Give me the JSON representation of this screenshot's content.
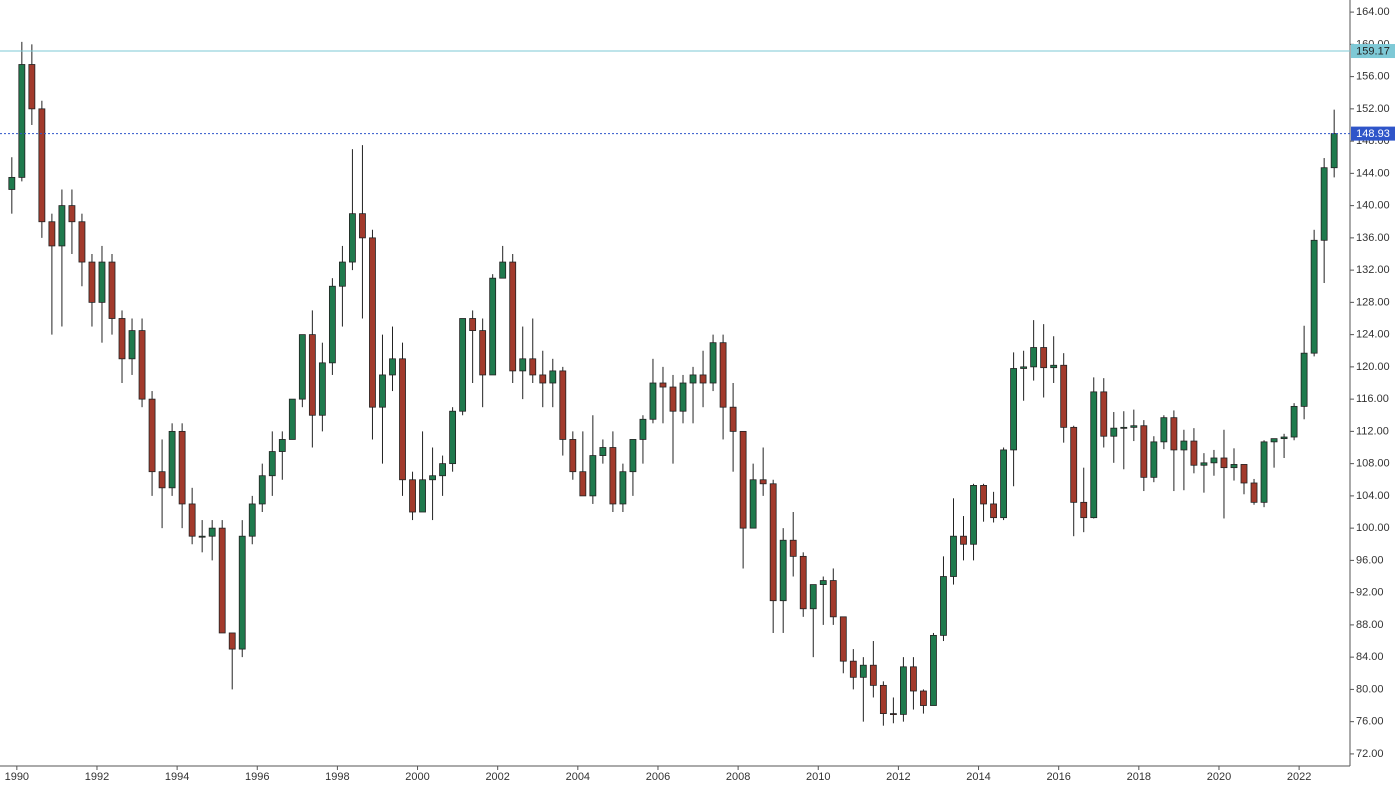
{
  "chart_data": {
    "type": "candlestick",
    "up_color": "#1f7a4d",
    "down_color": "#a23a2c",
    "xlim": [
      1989.58,
      2023.27
    ],
    "xticks": [
      1990,
      1992,
      1994,
      1996,
      1998,
      2000,
      2002,
      2004,
      2006,
      2008,
      2010,
      2012,
      2014,
      2016,
      2018,
      2020,
      2022
    ],
    "ylim": [
      70.5,
      165.5
    ],
    "yticks": [
      {
        "value": 72,
        "label": "72.00"
      },
      {
        "value": 76,
        "label": "76.00"
      },
      {
        "value": 80,
        "label": "80.00"
      },
      {
        "value": 84,
        "label": "84.00"
      },
      {
        "value": 88,
        "label": "88.00"
      },
      {
        "value": 92,
        "label": "92.00"
      },
      {
        "value": 96,
        "label": "96.00"
      },
      {
        "value": 100,
        "label": "100.00"
      },
      {
        "value": 104,
        "label": "104.00"
      },
      {
        "value": 108,
        "label": "108.00"
      },
      {
        "value": 112,
        "label": "112.00"
      },
      {
        "value": 116,
        "label": "116.00"
      },
      {
        "value": 120,
        "label": "120.00"
      },
      {
        "value": 124,
        "label": "124.00"
      },
      {
        "value": 128,
        "label": "128.00"
      },
      {
        "value": 132,
        "label": "132.00"
      },
      {
        "value": 136,
        "label": "136.00"
      },
      {
        "value": 140,
        "label": "140.00"
      },
      {
        "value": 144,
        "label": "144.00"
      },
      {
        "value": 148,
        "label": "148.00"
      },
      {
        "value": 152,
        "label": "152.00"
      },
      {
        "value": 156,
        "label": "156.00"
      },
      {
        "value": 160,
        "label": "160.00"
      },
      {
        "value": 164,
        "label": "164.00"
      }
    ],
    "hlines": [
      {
        "value": 159.17,
        "color": "#7ec9d6",
        "dashed": false,
        "label_text_color": "#222"
      },
      {
        "value": 148.93,
        "color": "#2f55c9",
        "dashed": true,
        "label_text_color": "#fff"
      }
    ],
    "x": [
      1989.875,
      1990.125,
      1990.375,
      1990.625,
      1990.875,
      1991.125,
      1991.375,
      1991.625,
      1991.875,
      1992.125,
      1992.375,
      1992.625,
      1992.875,
      1993.125,
      1993.375,
      1993.625,
      1993.875,
      1994.125,
      1994.375,
      1994.625,
      1994.875,
      1995.125,
      1995.375,
      1995.625,
      1995.875,
      1996.125,
      1996.375,
      1996.625,
      1996.875,
      1997.125,
      1997.375,
      1997.625,
      1997.875,
      1998.125,
      1998.375,
      1998.625,
      1998.875,
      1999.125,
      1999.375,
      1999.625,
      1999.875,
      2000.125,
      2000.375,
      2000.625,
      2000.875,
      2001.125,
      2001.375,
      2001.625,
      2001.875,
      2002.125,
      2002.375,
      2002.625,
      2002.875,
      2003.125,
      2003.375,
      2003.625,
      2003.875,
      2004.125,
      2004.375,
      2004.625,
      2004.875,
      2005.125,
      2005.375,
      2005.625,
      2005.875,
      2006.125,
      2006.375,
      2006.625,
      2006.875,
      2007.125,
      2007.375,
      2007.625,
      2007.875,
      2008.125,
      2008.375,
      2008.625,
      2008.875,
      2009.125,
      2009.375,
      2009.625,
      2009.875,
      2010.125,
      2010.375,
      2010.625,
      2010.875,
      2011.125,
      2011.375,
      2011.625,
      2011.875,
      2012.125,
      2012.375,
      2012.625,
      2012.875,
      2013.125,
      2013.375,
      2013.625,
      2013.875,
      2014.125,
      2014.375,
      2014.625,
      2014.875,
      2015.125,
      2015.375,
      2015.625,
      2015.875,
      2016.125,
      2016.375,
      2016.625,
      2016.875,
      2017.125,
      2017.375,
      2017.625,
      2017.875,
      2018.125,
      2018.375,
      2018.625,
      2018.875,
      2019.125,
      2019.375,
      2019.625,
      2019.875,
      2020.125,
      2020.375,
      2020.625,
      2020.875,
      2021.125,
      2021.375,
      2021.625,
      2021.875,
      2022.125,
      2022.375,
      2022.625,
      2022.875
    ],
    "ohlc": [
      [
        142,
        146,
        139,
        143.5
      ],
      [
        143.5,
        160.3,
        143,
        157.5
      ],
      [
        157.5,
        160,
        150,
        152
      ],
      [
        152,
        153,
        136,
        138
      ],
      [
        138,
        139,
        124,
        135
      ],
      [
        135,
        142,
        125,
        140
      ],
      [
        140,
        142,
        134,
        138
      ],
      [
        138,
        139,
        130,
        133
      ],
      [
        133,
        134,
        125,
        128
      ],
      [
        128,
        135,
        123,
        133
      ],
      [
        133,
        134,
        124,
        126
      ],
      [
        126,
        127,
        118,
        121
      ],
      [
        121,
        126,
        119,
        124.5
      ],
      [
        124.5,
        126,
        115,
        116
      ],
      [
        116,
        117,
        104,
        107
      ],
      [
        107,
        111,
        100,
        105
      ],
      [
        105,
        113,
        104,
        112
      ],
      [
        112,
        113,
        100,
        103
      ],
      [
        103,
        105,
        98,
        99
      ],
      [
        99,
        101,
        97,
        99
      ],
      [
        99,
        101,
        96,
        100
      ],
      [
        100,
        101,
        87,
        87
      ],
      [
        87,
        87,
        80,
        85
      ],
      [
        85,
        101,
        84,
        99
      ],
      [
        99,
        104,
        98,
        103
      ],
      [
        103,
        108,
        102,
        106.5
      ],
      [
        106.5,
        112,
        104,
        109.5
      ],
      [
        109.5,
        112,
        106,
        111
      ],
      [
        111,
        116,
        111,
        116
      ],
      [
        116,
        124,
        115,
        124
      ],
      [
        124,
        127,
        110,
        114
      ],
      [
        114,
        123,
        112,
        120.5
      ],
      [
        120.5,
        131,
        119,
        130
      ],
      [
        130,
        135,
        125,
        133
      ],
      [
        133,
        147,
        132,
        139
      ],
      [
        139,
        147.5,
        126,
        136
      ],
      [
        136,
        137,
        111,
        115
      ],
      [
        115,
        124,
        108,
        119
      ],
      [
        119,
        125,
        117,
        121
      ],
      [
        121,
        123,
        104,
        106
      ],
      [
        106,
        107,
        101,
        102
      ],
      [
        102,
        112,
        102,
        106
      ],
      [
        106,
        110,
        101,
        106.5
      ],
      [
        106.5,
        109,
        104,
        108
      ],
      [
        108,
        115,
        107,
        114.5
      ],
      [
        114.5,
        126,
        114,
        126
      ],
      [
        126,
        127,
        118,
        124.5
      ],
      [
        124.5,
        126,
        115,
        119
      ],
      [
        119,
        131.5,
        119,
        131
      ],
      [
        131,
        135,
        131,
        133
      ],
      [
        133,
        134,
        118,
        119.5
      ],
      [
        119.5,
        125,
        116,
        121
      ],
      [
        121,
        126,
        118,
        119
      ],
      [
        119,
        122,
        115,
        118
      ],
      [
        118,
        121,
        115,
        119.5
      ],
      [
        119.5,
        120,
        109,
        111
      ],
      [
        111,
        112,
        106,
        107
      ],
      [
        107,
        112,
        104,
        104
      ],
      [
        104,
        114,
        103,
        109
      ],
      [
        109,
        111,
        108,
        110
      ],
      [
        110,
        112,
        102,
        103
      ],
      [
        103,
        108,
        102,
        107
      ],
      [
        107,
        111,
        104,
        111
      ],
      [
        111,
        114,
        108,
        113.5
      ],
      [
        113.5,
        121,
        113,
        118
      ],
      [
        118,
        120,
        113,
        117.5
      ],
      [
        117.5,
        119,
        108,
        114.5
      ],
      [
        114.5,
        119,
        113,
        118
      ],
      [
        118,
        120,
        113,
        119
      ],
      [
        119,
        122,
        115,
        118
      ],
      [
        118,
        124,
        117,
        123
      ],
      [
        123,
        124,
        111,
        115
      ],
      [
        115,
        118,
        107,
        112
      ],
      [
        112,
        112,
        95,
        100
      ],
      [
        100,
        108,
        100,
        106
      ],
      [
        106,
        110,
        104,
        105.5
      ],
      [
        105.5,
        106,
        87,
        91
      ],
      [
        91,
        100,
        87,
        98.5
      ],
      [
        98.5,
        102,
        94,
        96.5
      ],
      [
        96.5,
        97,
        89,
        90
      ],
      [
        90,
        93,
        84,
        93
      ],
      [
        93,
        94,
        88,
        93.5
      ],
      [
        93.5,
        95,
        88,
        89
      ],
      [
        89,
        89,
        82,
        83.5
      ],
      [
        83.5,
        85,
        80,
        81.5
      ],
      [
        81.5,
        84,
        76,
        83
      ],
      [
        83,
        86,
        79,
        80.5
      ],
      [
        80.5,
        81,
        75.5,
        77
      ],
      [
        77,
        79,
        75.8,
        76.9
      ],
      [
        76.9,
        84,
        76,
        82.8
      ],
      [
        82.8,
        84,
        77.5,
        79.8
      ],
      [
        79.8,
        80,
        77,
        78
      ],
      [
        78,
        87,
        78,
        86.7
      ],
      [
        86.7,
        96.5,
        86,
        94
      ],
      [
        94,
        103.7,
        93,
        99
      ],
      [
        99,
        101.5,
        96,
        98
      ],
      [
        98,
        105.5,
        96,
        105.3
      ],
      [
        105.3,
        105.5,
        100.8,
        103
      ],
      [
        103,
        104.5,
        100.7,
        101.3
      ],
      [
        101.3,
        110,
        101,
        109.7
      ],
      [
        109.7,
        121.8,
        105.2,
        119.8
      ],
      [
        119.8,
        122,
        115.8,
        120
      ],
      [
        120,
        125.8,
        118.3,
        122.4
      ],
      [
        122.4,
        125.3,
        116.2,
        119.9
      ],
      [
        119.9,
        123.8,
        118,
        120.2
      ],
      [
        120.2,
        121.7,
        110.6,
        112.5
      ],
      [
        112.5,
        112.7,
        99,
        103.2
      ],
      [
        103.2,
        107.5,
        99.5,
        101.3
      ],
      [
        101.3,
        118.7,
        101.2,
        116.9
      ],
      [
        116.9,
        118.6,
        110,
        111.4
      ],
      [
        111.4,
        114.4,
        108.1,
        112.4
      ],
      [
        112.4,
        114.5,
        107.3,
        112.5
      ],
      [
        112.5,
        114.7,
        110.8,
        112.7
      ],
      [
        112.7,
        113.4,
        104.6,
        106.3
      ],
      [
        106.3,
        111.4,
        105.7,
        110.7
      ],
      [
        110.7,
        114,
        109.8,
        113.7
      ],
      [
        113.7,
        114.6,
        104.6,
        109.7
      ],
      [
        109.7,
        112.2,
        104.7,
        110.8
      ],
      [
        110.8,
        112.4,
        106.8,
        107.8
      ],
      [
        107.8,
        109.3,
        104.4,
        108.1
      ],
      [
        108.1,
        109.7,
        106.5,
        108.7
      ],
      [
        108.7,
        112.2,
        101.2,
        107.5
      ],
      [
        107.5,
        109.9,
        105.9,
        107.9
      ],
      [
        107.9,
        107.9,
        104.2,
        105.6
      ],
      [
        105.6,
        106.1,
        102.9,
        103.2
      ],
      [
        103.2,
        110.9,
        102.6,
        110.7
      ],
      [
        110.7,
        111,
        107.5,
        111.1
      ],
      [
        111.1,
        111.7,
        108.7,
        111.3
      ],
      [
        111.3,
        115.5,
        110.9,
        115.1
      ],
      [
        115.1,
        125.1,
        113.5,
        121.7
      ],
      [
        121.7,
        137,
        121.3,
        135.7
      ],
      [
        135.7,
        145.9,
        130.4,
        144.7
      ],
      [
        144.7,
        151.9,
        143.5,
        148.93
      ]
    ]
  }
}
